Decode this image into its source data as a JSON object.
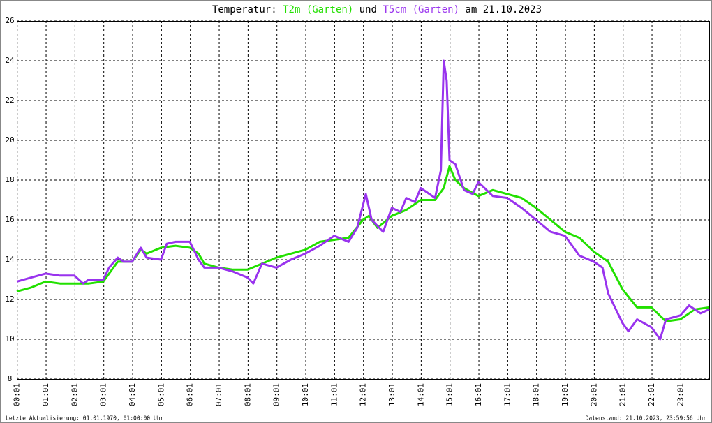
{
  "chart_data": {
    "type": "line",
    "title_prefix": "Temperatur:",
    "title_join": "und",
    "title_suffix": "am 21.10.2023",
    "footer_left": "Letzte Aktualisierung: 01.01.1970, 01:00:00 Uhr",
    "footer_right": "Datenstand: 21.10.2023, 23:59:56 Uhr",
    "grid": true,
    "xlim": [
      0,
      24
    ],
    "ylim": [
      8,
      26
    ],
    "yticks": [
      8,
      10,
      12,
      14,
      16,
      18,
      20,
      22,
      24,
      26
    ],
    "xticks": [
      {
        "value": 0.017,
        "label": "00:01"
      },
      {
        "value": 1.017,
        "label": "01:01"
      },
      {
        "value": 2.017,
        "label": "02:01"
      },
      {
        "value": 3.017,
        "label": "03:01"
      },
      {
        "value": 4.017,
        "label": "04:01"
      },
      {
        "value": 5.017,
        "label": "05:01"
      },
      {
        "value": 6.017,
        "label": "06:01"
      },
      {
        "value": 7.017,
        "label": "07:01"
      },
      {
        "value": 8.017,
        "label": "08:01"
      },
      {
        "value": 9.017,
        "label": "09:01"
      },
      {
        "value": 10.017,
        "label": "10:01"
      },
      {
        "value": 11.017,
        "label": "11:01"
      },
      {
        "value": 12.017,
        "label": "12:01"
      },
      {
        "value": 13.017,
        "label": "13:01"
      },
      {
        "value": 14.017,
        "label": "14:01"
      },
      {
        "value": 15.017,
        "label": "15:01"
      },
      {
        "value": 16.017,
        "label": "16:01"
      },
      {
        "value": 17.017,
        "label": "17:01"
      },
      {
        "value": 18.017,
        "label": "18:01"
      },
      {
        "value": 19.017,
        "label": "19:01"
      },
      {
        "value": 20.017,
        "label": "20:01"
      },
      {
        "value": 21.017,
        "label": "21:01"
      },
      {
        "value": 22.017,
        "label": "22:01"
      },
      {
        "value": 23.017,
        "label": "23:01"
      }
    ],
    "series": [
      {
        "name": "T2m (Garten)",
        "color": "#22e000",
        "x": [
          0,
          0.5,
          1,
          1.5,
          2,
          2.5,
          3,
          3.3,
          3.5,
          4,
          4.3,
          4.5,
          5,
          5.5,
          6,
          6.3,
          6.5,
          7,
          7.5,
          8,
          8.5,
          9,
          9.5,
          10,
          10.5,
          11,
          11.5,
          12,
          12.2,
          12.5,
          13,
          13.5,
          14,
          14.5,
          14.8,
          15,
          15.2,
          15.5,
          16,
          16.5,
          17,
          17.5,
          18,
          18.5,
          19,
          19.5,
          20,
          20.5,
          21,
          21.5,
          22,
          22.5,
          23,
          23.5,
          24
        ],
        "values": [
          12.4,
          12.6,
          12.9,
          12.8,
          12.8,
          12.8,
          12.9,
          13.5,
          13.9,
          13.9,
          14.5,
          14.3,
          14.6,
          14.7,
          14.6,
          14.3,
          13.8,
          13.6,
          13.5,
          13.5,
          13.8,
          14.1,
          14.3,
          14.5,
          14.9,
          15.0,
          15.1,
          16.0,
          16.2,
          15.6,
          16.2,
          16.5,
          17.0,
          17.0,
          17.6,
          18.7,
          18.0,
          17.6,
          17.2,
          17.5,
          17.3,
          17.1,
          16.6,
          16.0,
          15.4,
          15.1,
          14.4,
          13.9,
          12.5,
          11.6,
          11.6,
          10.9,
          11.0,
          11.5,
          11.6
        ]
      },
      {
        "name": "T5cm (Garten)",
        "color": "#9933ee",
        "x": [
          0,
          0.5,
          1,
          1.5,
          2,
          2.3,
          2.5,
          3,
          3.2,
          3.5,
          3.7,
          4,
          4.3,
          4.5,
          5,
          5.2,
          5.5,
          6,
          6.3,
          6.5,
          7,
          7.5,
          8,
          8.2,
          8.5,
          9,
          9.5,
          10,
          10.5,
          11,
          11.5,
          11.8,
          12.1,
          12.3,
          12.5,
          12.7,
          13,
          13.3,
          13.5,
          13.8,
          14,
          14.3,
          14.5,
          14.7,
          14.8,
          14.9,
          15,
          15.2,
          15.5,
          15.8,
          16,
          16.5,
          17,
          17.5,
          18,
          18.5,
          19,
          19.5,
          20,
          20.3,
          20.5,
          21,
          21.2,
          21.5,
          22,
          22.3,
          22.5,
          23,
          23.3,
          23.7,
          24
        ],
        "values": [
          12.9,
          13.1,
          13.3,
          13.2,
          13.2,
          12.8,
          13.0,
          13.0,
          13.6,
          14.1,
          13.9,
          13.9,
          14.6,
          14.1,
          14.0,
          14.8,
          14.9,
          14.9,
          14.0,
          13.6,
          13.6,
          13.4,
          13.1,
          12.8,
          13.8,
          13.6,
          14.0,
          14.3,
          14.7,
          15.2,
          14.9,
          15.6,
          17.3,
          16.0,
          15.7,
          15.4,
          16.6,
          16.4,
          17.1,
          16.9,
          17.6,
          17.3,
          17.1,
          18.5,
          24.0,
          23.0,
          19.0,
          18.8,
          17.5,
          17.3,
          17.9,
          17.2,
          17.1,
          16.6,
          16.0,
          15.4,
          15.2,
          14.2,
          13.9,
          13.6,
          12.3,
          10.8,
          10.4,
          11.0,
          10.6,
          10.0,
          11.0,
          11.2,
          11.7,
          11.3,
          11.5
        ]
      }
    ]
  }
}
